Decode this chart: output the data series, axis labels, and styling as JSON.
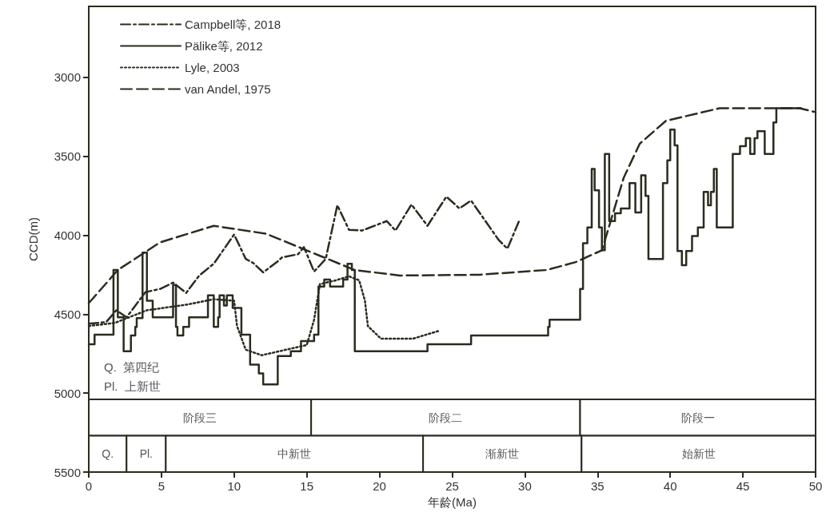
{
  "chart_data": {
    "type": "line",
    "xlabel": "年龄(Ma)",
    "ylabel": "CCD(m)",
    "xlim": [
      0,
      50
    ],
    "xticks": [
      0,
      5,
      10,
      15,
      20,
      25,
      30,
      35,
      40,
      45,
      50
    ],
    "ylim": [
      5500,
      2550
    ],
    "yticks": [
      3000,
      3500,
      4000,
      4500,
      5000,
      5500
    ],
    "grid": false,
    "legend": "top left",
    "series": [
      {
        "name": "Campbell等, 2018",
        "color": "#2b2b1f",
        "line_style": "dashdot",
        "x": [
          0,
          1.2,
          1.9,
          2.6,
          3.9,
          4.9,
          5.8,
          6.7,
          7.6,
          8.6,
          10.0,
          10.8,
          11.3,
          12.0,
          13.0,
          13.3,
          14.4,
          14.8,
          15.5,
          16.3,
          17.1,
          17.9,
          18.8,
          20.5,
          21.1,
          22.2,
          23.3,
          24.6,
          25.5,
          26.3,
          28.2,
          28.8,
          29.6
        ],
        "values": [
          4560,
          4550,
          4475,
          4520,
          4360,
          4340,
          4300,
          4365,
          4255,
          4180,
          3995,
          4150,
          4175,
          4235,
          4165,
          4140,
          4120,
          4075,
          4230,
          4150,
          3810,
          3965,
          3970,
          3910,
          3970,
          3805,
          3940,
          3755,
          3830,
          3780,
          4030,
          4085,
          3910
        ]
      },
      {
        "name": "Pälike等, 2012",
        "type": "step",
        "color": "#2b2b1f",
        "line_style": "solid",
        "x": [
          0,
          0.4,
          1.7,
          2.0,
          2.4,
          2.9,
          3.2,
          3.3,
          3.7,
          4.0,
          4.4,
          5.8,
          6.0,
          6.1,
          6.5,
          6.9,
          8.2,
          8.6,
          8.9,
          9.0,
          9.3,
          9.5,
          9.9,
          10.5,
          11.1,
          11.7,
          12.0,
          13.0,
          13.9,
          14.6,
          15.5,
          15.8,
          16.2,
          16.6,
          17.5,
          17.8,
          18.1,
          18.3,
          23.3,
          26.3,
          31.6,
          31.7,
          33.8,
          34.0,
          34.3,
          34.6,
          34.8,
          35.1,
          35.3,
          35.5,
          35.8,
          36.2,
          36.6,
          37.2,
          37.6,
          38.0,
          38.3,
          38.5,
          39.5,
          39.8,
          40.0,
          40.3,
          40.5,
          40.8,
          41.1,
          41.5,
          41.9,
          42.3,
          42.6,
          42.8,
          43.0,
          43.2,
          44.3,
          44.8,
          45.2,
          45.5,
          45.8,
          46.0,
          46.5,
          47.1,
          47.3,
          49.0
        ],
        "values": [
          4690,
          4630,
          4220,
          4520,
          4735,
          4635,
          4580,
          4525,
          4110,
          4415,
          4520,
          4315,
          4580,
          4635,
          4580,
          4520,
          4380,
          4580,
          4520,
          4380,
          4445,
          4380,
          4460,
          4630,
          4820,
          4875,
          4945,
          4765,
          4735,
          4670,
          4630,
          4325,
          4280,
          4325,
          4280,
          4180,
          4220,
          4735,
          4690,
          4635,
          4580,
          4535,
          4340,
          4050,
          3950,
          3580,
          3715,
          3950,
          4095,
          3485,
          3910,
          3860,
          3830,
          3670,
          3855,
          3620,
          3750,
          4150,
          3670,
          3525,
          3330,
          3430,
          4100,
          4190,
          4100,
          4005,
          3950,
          3725,
          3810,
          3725,
          3580,
          3950,
          3485,
          3435,
          3385,
          3485,
          3385,
          3340,
          3485,
          3285,
          3195,
          3195
        ]
      },
      {
        "name": "Lyle, 2003",
        "color": "#2b2b1f",
        "line_style": "dotted",
        "x": [
          0,
          1.8,
          4.0,
          6.7,
          8.6,
          10.0,
          10.2,
          10.8,
          11.9,
          15.0,
          15.5,
          15.9,
          17.0,
          17.9,
          18.6,
          19.0,
          19.2,
          20.1,
          22.3,
          24.1
        ],
        "values": [
          4575,
          4555,
          4475,
          4440,
          4405,
          4415,
          4575,
          4725,
          4760,
          4695,
          4535,
          4310,
          4285,
          4260,
          4285,
          4415,
          4575,
          4655,
          4655,
          4605
        ]
      },
      {
        "name": "van Andel, 1975",
        "color": "#2b2b1f",
        "line_style": "dashed",
        "x": [
          0,
          2.0,
          4.9,
          8.6,
          12.2,
          15.9,
          18.3,
          21.4,
          26.9,
          31.5,
          33.5,
          35.3,
          36.8,
          37.9,
          39.7,
          43.4,
          48.9,
          50
        ],
        "values": [
          4430,
          4220,
          4045,
          3940,
          3990,
          4130,
          4220,
          4255,
          4250,
          4220,
          4170,
          4095,
          3635,
          3420,
          3275,
          3195,
          3195,
          3220
        ]
      }
    ],
    "bands": [
      {
        "axis": "x",
        "from": 0,
        "to": 15.3,
        "label": "阶段三"
      },
      {
        "axis": "x",
        "from": 15.3,
        "to": 33.8,
        "label": "阶段二"
      },
      {
        "axis": "x",
        "from": 33.8,
        "to": 50,
        "label": "阶段一"
      },
      {
        "axis": "x",
        "from": 0,
        "to": 2.6,
        "label": "Q."
      },
      {
        "axis": "x",
        "from": 2.6,
        "to": 5.3,
        "label": "Pl."
      },
      {
        "axis": "x",
        "from": 5.3,
        "to": 23.0,
        "label": "中新世"
      },
      {
        "axis": "x",
        "from": 23.0,
        "to": 33.9,
        "label": "渐新世"
      },
      {
        "axis": "x",
        "from": 33.9,
        "to": 50,
        "label": "始新世"
      }
    ],
    "annotations": [
      "Q.  第四纪",
      "Pl.  上新世"
    ]
  }
}
